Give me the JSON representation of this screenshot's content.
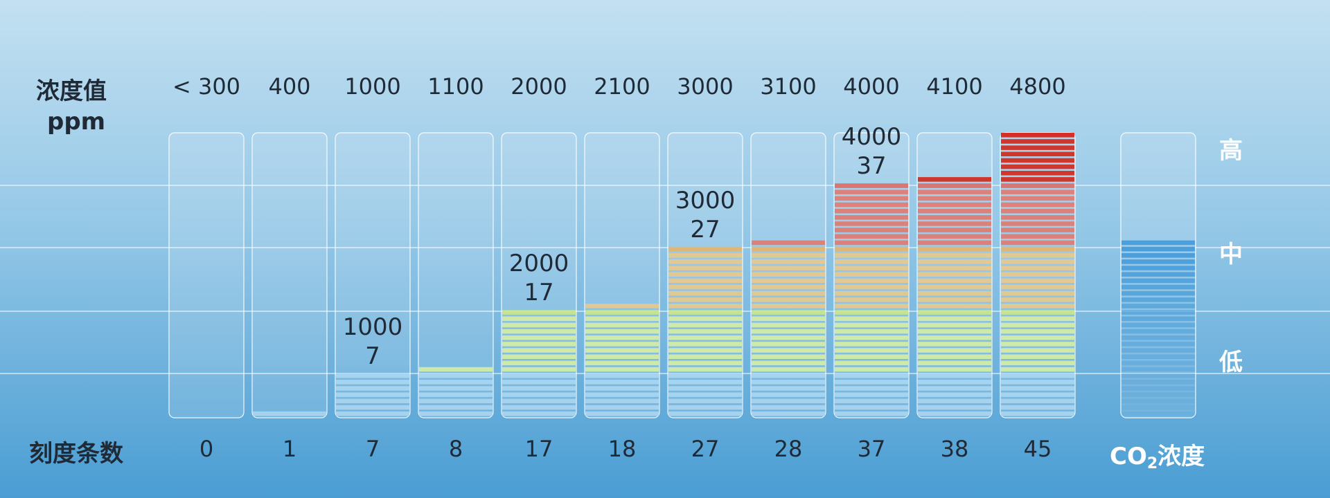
{
  "header": {
    "label_line1": "浓度值",
    "label_line2": "ppm",
    "bottom_label": "刻度条数"
  },
  "levels": {
    "high": "高",
    "mid": "中",
    "low": "低"
  },
  "legend_label": {
    "prefix": "CO",
    "sub": "2",
    "suffix": "浓度"
  },
  "chart_data": {
    "type": "bar",
    "categories": [
      "< 300",
      "400",
      "1000",
      "1100",
      "2000",
      "2100",
      "3000",
      "3100",
      "4000",
      "4100",
      "4800"
    ],
    "values": [
      0,
      1,
      7,
      8,
      17,
      18,
      27,
      28,
      37,
      38,
      45
    ],
    "ylim": [
      0,
      45
    ],
    "xlabel": "浓度值 ppm",
    "ylabel": "刻度条数",
    "annotations": [
      {
        "index": 2,
        "top": "1000",
        "bottom": "7"
      },
      {
        "index": 4,
        "top": "2000",
        "bottom": "17"
      },
      {
        "index": 6,
        "top": "3000",
        "bottom": "27"
      },
      {
        "index": 8,
        "top": "4000",
        "bottom": "37"
      }
    ],
    "grid": true,
    "color_stops": [
      {
        "value": 0,
        "color": "#cfe6f5"
      },
      {
        "value": 1,
        "color": "#a9d4ee"
      },
      {
        "value": 7,
        "color": "#a9d4ee"
      },
      {
        "value": 8,
        "color": "#d2eba6"
      },
      {
        "value": 17,
        "color": "#c8e68e"
      },
      {
        "value": 18,
        "color": "#e5c88f"
      },
      {
        "value": 27,
        "color": "#e2b46f"
      },
      {
        "value": 28,
        "color": "#df7c74"
      },
      {
        "value": 37,
        "color": "#d9706c"
      },
      {
        "value": 38,
        "color": "#d22e22"
      },
      {
        "value": 45,
        "color": "#d8261b"
      }
    ],
    "indicator": {
      "value": 28,
      "color": "#4c9fdb"
    }
  }
}
